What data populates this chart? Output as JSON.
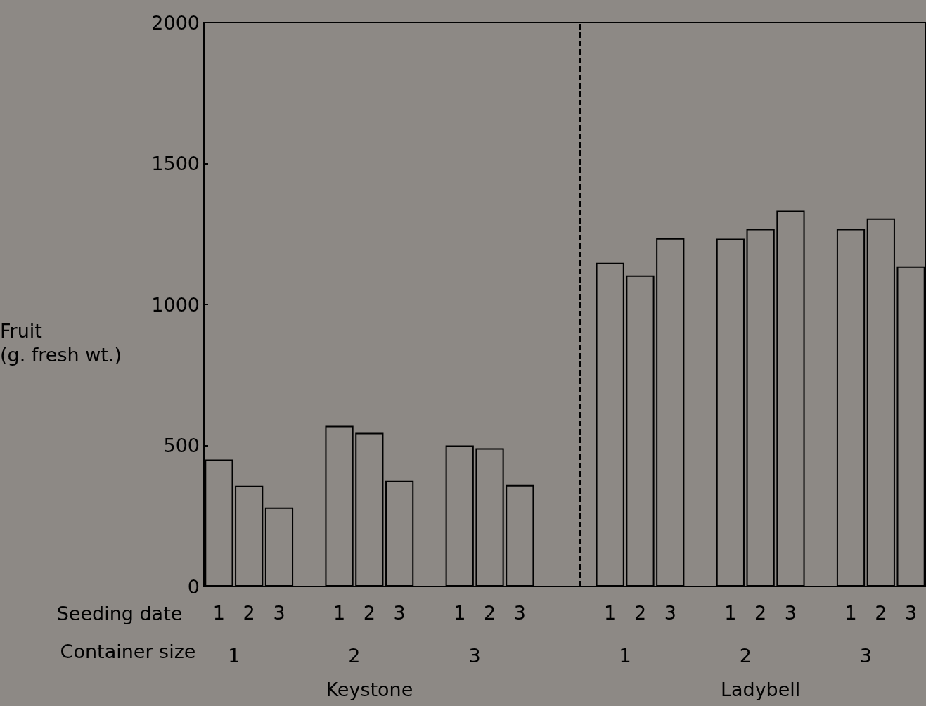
{
  "chart_data": {
    "type": "bar",
    "ylabel": "Fruit\n(g. fresh wt.)",
    "categories": [
      "1",
      "2",
      "3",
      null,
      "1",
      "2",
      "3",
      null,
      "1",
      "2",
      "3",
      null,
      null,
      "1",
      "2",
      "3",
      null,
      "1",
      "2",
      "3",
      null,
      "1",
      "2",
      "3"
    ],
    "series": [
      {
        "color": "#8d8985",
        "values": [
          450,
          357,
          280,
          null,
          570,
          545,
          375,
          null,
          500,
          490,
          360,
          null,
          null,
          1148,
          1103,
          1235,
          null,
          1233,
          1268,
          1333,
          null,
          1268,
          1305,
          1135
        ]
      }
    ],
    "ylim": [
      0,
      2000
    ],
    "yticks": [
      0,
      500,
      1000,
      1500,
      2000
    ],
    "ref_lines": [
      {
        "axis": "x",
        "line_style": "dashed"
      }
    ],
    "annotations": [
      "Seeding date",
      "Container size",
      "1",
      "2",
      "3",
      "1",
      "2",
      "3",
      "Keystone",
      "Ladybell"
    ]
  }
}
